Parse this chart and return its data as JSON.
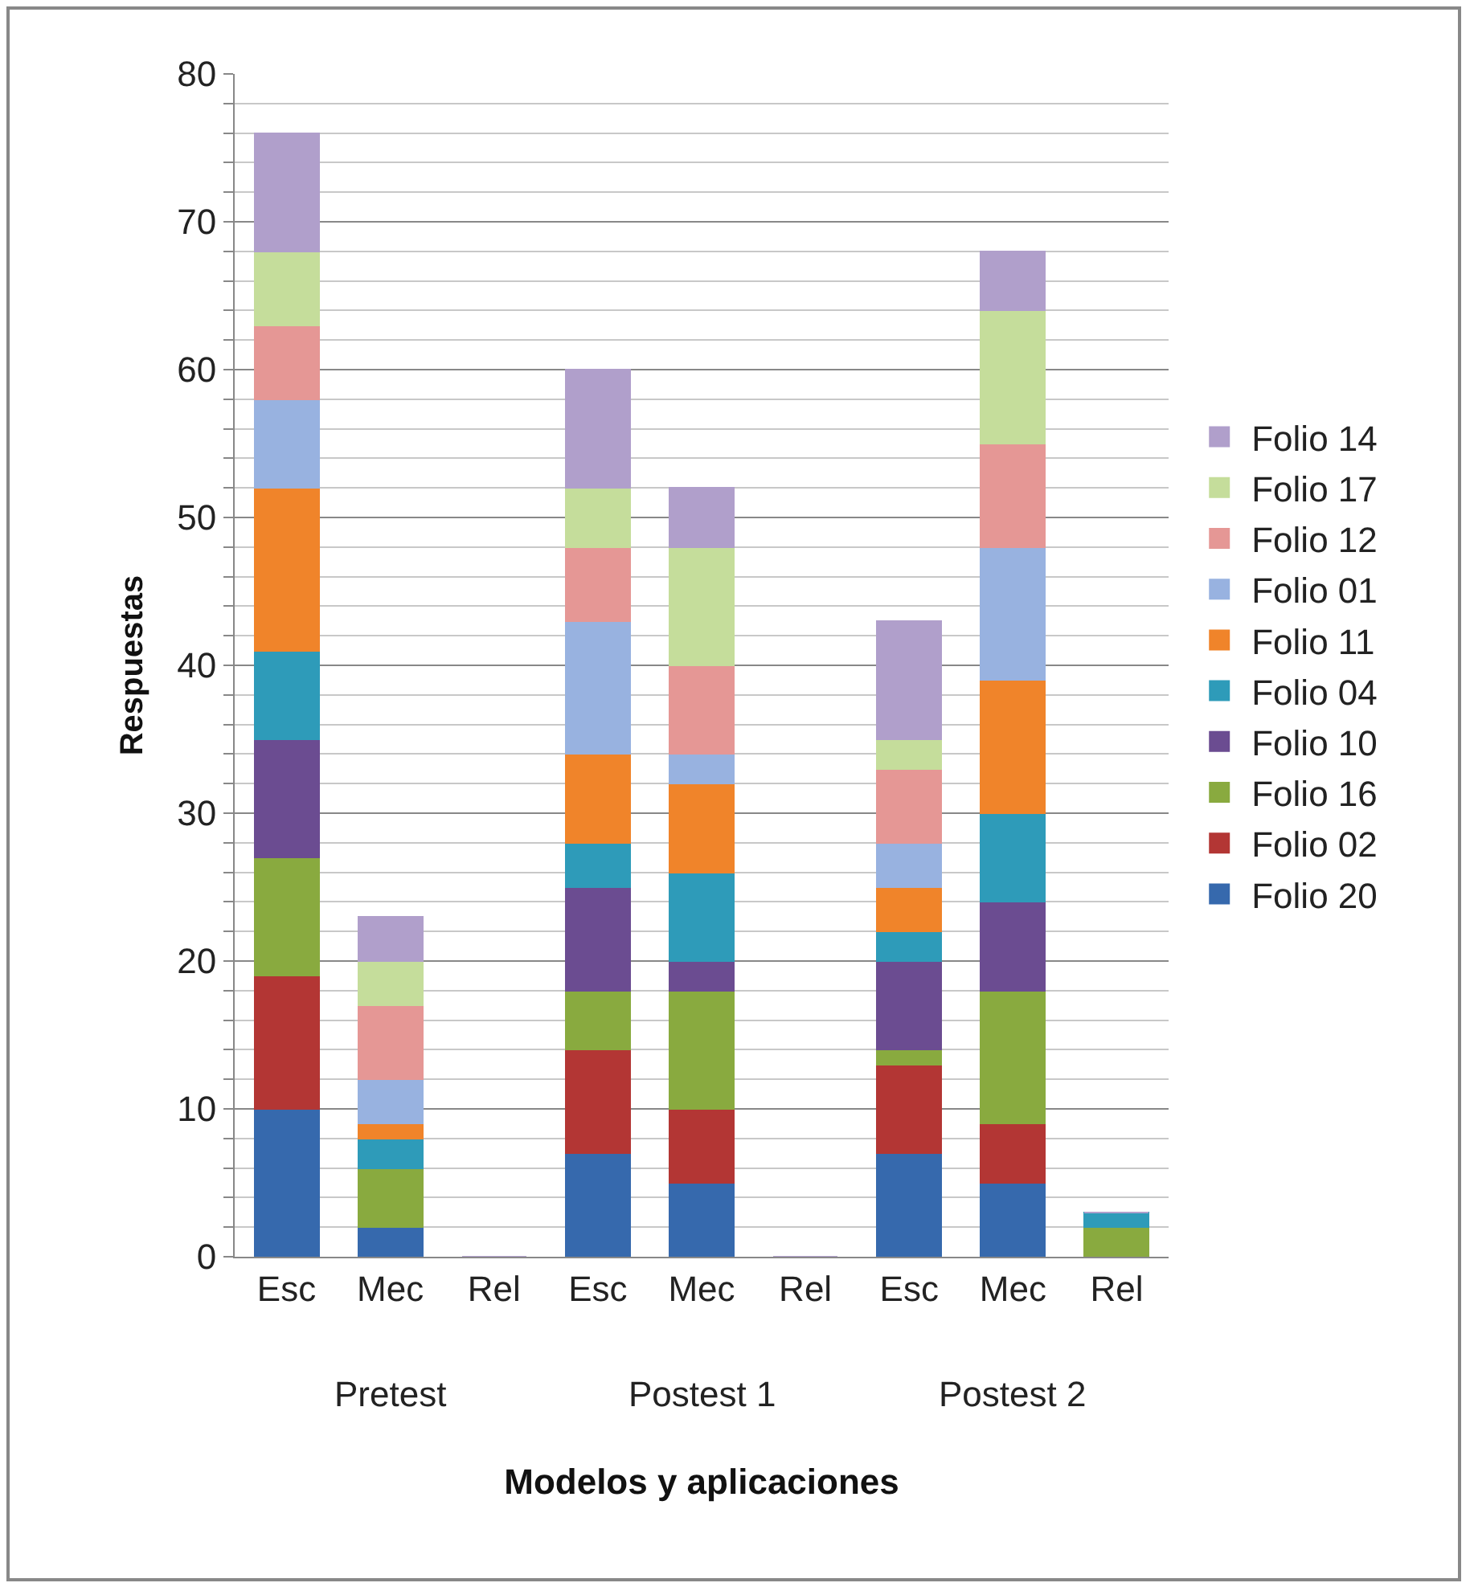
{
  "chart_data": {
    "type": "bar",
    "stacked": true,
    "xlabel": "Modelos y aplicaciones",
    "ylabel": "Respuestas",
    "categories": [
      "Esc",
      "Mec",
      "Rel",
      "Esc",
      "Mec",
      "Rel",
      "Esc",
      "Mec",
      "Rel"
    ],
    "annotations": [
      "Pretest",
      "Postest 1",
      "Postest 2"
    ],
    "ylim": [
      0,
      80
    ],
    "yticks": [
      0,
      {
        "value": 2,
        "label": null
      },
      {
        "value": 4,
        "label": null
      },
      {
        "value": 6,
        "label": null
      },
      {
        "value": 8,
        "label": null
      },
      10,
      {
        "value": 12,
        "label": null
      },
      {
        "value": 14,
        "label": null
      },
      {
        "value": 16,
        "label": null
      },
      {
        "value": 18,
        "label": null
      },
      20,
      {
        "value": 22,
        "label": null
      },
      {
        "value": 24,
        "label": null
      },
      {
        "value": 26,
        "label": null
      },
      {
        "value": 28,
        "label": null
      },
      30,
      {
        "value": 32,
        "label": null
      },
      {
        "value": 34,
        "label": null
      },
      {
        "value": 36,
        "label": null
      },
      {
        "value": 38,
        "label": null
      },
      40,
      {
        "value": 42,
        "label": null
      },
      {
        "value": 44,
        "label": null
      },
      {
        "value": 46,
        "label": null
      },
      {
        "value": 48,
        "label": null
      },
      50,
      {
        "value": 52,
        "label": null
      },
      {
        "value": 54,
        "label": null
      },
      {
        "value": 56,
        "label": null
      },
      {
        "value": 58,
        "label": null
      },
      60,
      {
        "value": 62,
        "label": null
      },
      {
        "value": 64,
        "label": null
      },
      {
        "value": 66,
        "label": null
      },
      {
        "value": 68,
        "label": null
      },
      70,
      {
        "value": 72,
        "label": null
      },
      {
        "value": 74,
        "label": null
      },
      {
        "value": 76,
        "label": null
      },
      {
        "value": 78,
        "label": null
      },
      80
    ],
    "grid": "y",
    "legend": "right",
    "series": [
      {
        "name": "Folio 20",
        "color": "#3669ad",
        "values": [
          10,
          2,
          0,
          7,
          5,
          0,
          7,
          5,
          0
        ]
      },
      {
        "name": "Folio 02",
        "color": "#b33634",
        "values": [
          9,
          0,
          0,
          7,
          5,
          0,
          6,
          4,
          0
        ]
      },
      {
        "name": "Folio 16",
        "color": "#89aa3f",
        "values": [
          8,
          4,
          0,
          4,
          8,
          0,
          1,
          9,
          2
        ]
      },
      {
        "name": "Folio 10",
        "color": "#6b4c91",
        "values": [
          8,
          0,
          0,
          7,
          2,
          0,
          6,
          6,
          0
        ]
      },
      {
        "name": "Folio 04",
        "color": "#2e9bb9",
        "values": [
          6,
          2,
          0,
          3,
          6,
          0,
          2,
          6,
          1
        ]
      },
      {
        "name": "Folio 11",
        "color": "#f0842a",
        "values": [
          11,
          1,
          0,
          6,
          6,
          0,
          3,
          9,
          0
        ]
      },
      {
        "name": "Folio 01",
        "color": "#98b2e0",
        "values": [
          6,
          3,
          0,
          9,
          2,
          0,
          3,
          9,
          0
        ]
      },
      {
        "name": "Folio 12",
        "color": "#e59795",
        "values": [
          5,
          5,
          0,
          5,
          6,
          0,
          5,
          7,
          0
        ]
      },
      {
        "name": "Folio 17",
        "color": "#c5dd9b",
        "values": [
          5,
          3,
          0,
          4,
          8,
          0,
          2,
          9,
          0
        ]
      },
      {
        "name": "Folio 14",
        "color": "#b09fcb",
        "values": [
          8,
          3,
          0,
          8,
          4,
          0,
          8,
          4,
          0
        ]
      }
    ]
  }
}
